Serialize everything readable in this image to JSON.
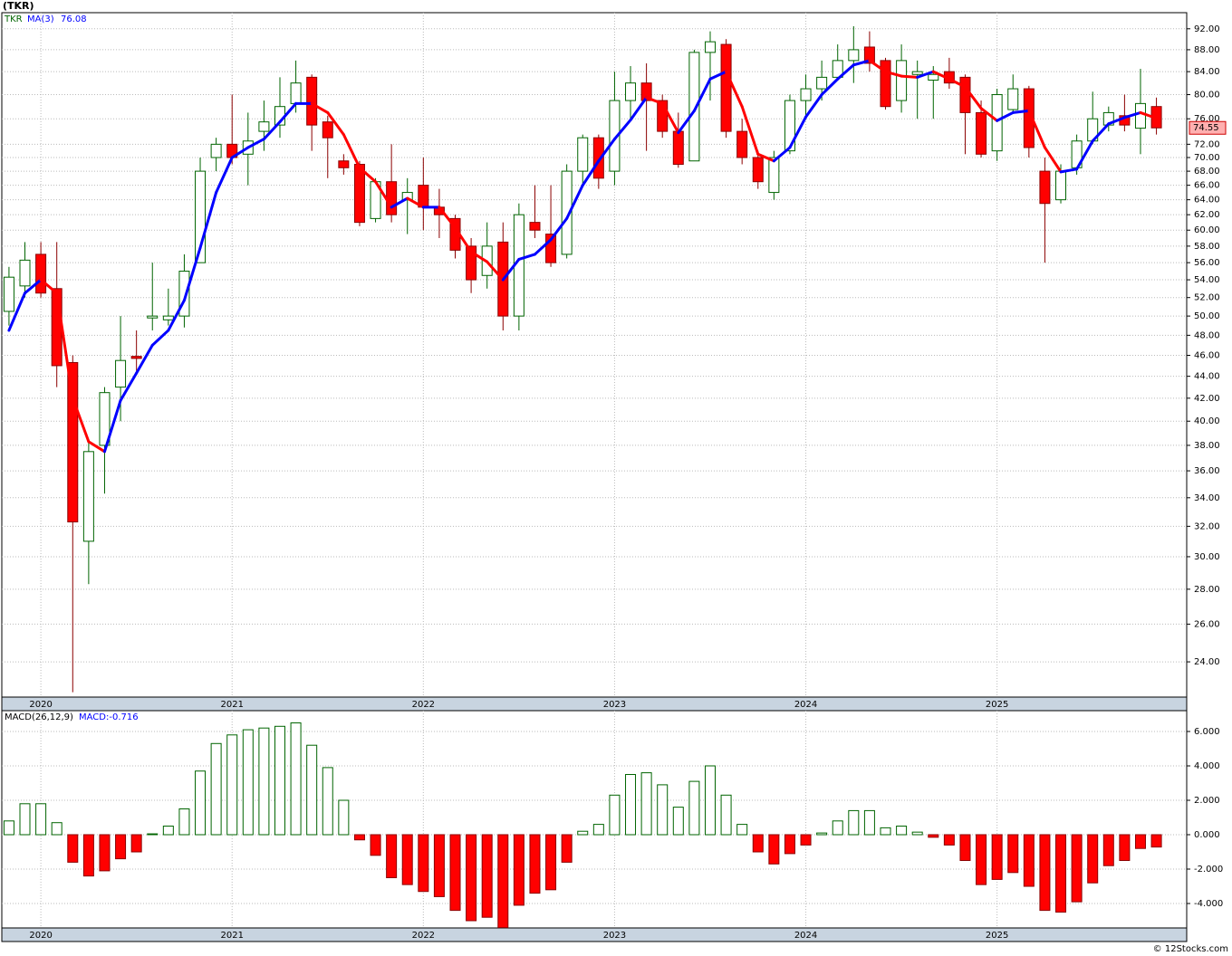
{
  "chart_data": [
    {
      "type": "candlestick",
      "title": "(TKR)",
      "symbol": "TKR",
      "yscale": "log",
      "grid": true,
      "up_color": "#006400",
      "down_color": "#ff0000",
      "ylim": [
        22.27,
        95.2
      ],
      "xlim": [
        -0.45,
        73.9
      ],
      "xticks": [
        {
          "value": 2,
          "label": "2020"
        },
        {
          "value": 14,
          "label": "2021"
        },
        {
          "value": 26,
          "label": "2022"
        },
        {
          "value": 38,
          "label": "2023"
        },
        {
          "value": 50,
          "label": "2024"
        },
        {
          "value": 62,
          "label": "2025"
        }
      ],
      "yticks": [
        {
          "value": 24,
          "label": "24.00"
        },
        {
          "value": 26,
          "label": "26.00"
        },
        {
          "value": 28,
          "label": "28.00"
        },
        {
          "value": 30,
          "label": "30.00"
        },
        {
          "value": 32,
          "label": "32.00"
        },
        {
          "value": 34,
          "label": "34.00"
        },
        {
          "value": 36,
          "label": "36.00"
        },
        {
          "value": 38,
          "label": "38.00"
        },
        {
          "value": 40,
          "label": "40.00"
        },
        {
          "value": 42,
          "label": "42.00"
        },
        {
          "value": 44,
          "label": "44.00"
        },
        {
          "value": 46,
          "label": "46.00"
        },
        {
          "value": 48,
          "label": "48.00"
        },
        {
          "value": 50,
          "label": "50.00"
        },
        {
          "value": 52,
          "label": "52.00"
        },
        {
          "value": 54,
          "label": "54.00"
        },
        {
          "value": 56,
          "label": "56.00"
        },
        {
          "value": 58,
          "label": "58.00"
        },
        {
          "value": 60,
          "label": "60.00"
        },
        {
          "value": 62,
          "label": "62.00"
        },
        {
          "value": 64,
          "label": "64.00"
        },
        {
          "value": 66,
          "label": "66.00"
        },
        {
          "value": 68,
          "label": "68.00"
        },
        {
          "value": 70,
          "label": "70.00"
        },
        {
          "value": 72,
          "label": "72.00"
        },
        {
          "value": 76,
          "label": "76.00"
        },
        {
          "value": 80,
          "label": "80.00"
        },
        {
          "value": 84,
          "label": "84.00"
        },
        {
          "value": 88,
          "label": "88.00"
        },
        {
          "value": 92,
          "label": "92.00"
        }
      ],
      "open": [
        50.5,
        53.3,
        57,
        53,
        45.3,
        31,
        38,
        43,
        45.9,
        49.8,
        49.6,
        50,
        56,
        70,
        72,
        70.5,
        74,
        75,
        78.5,
        83,
        75.5,
        69.5,
        69,
        61.5,
        66.5,
        64,
        66,
        63,
        61.5,
        58,
        54.5,
        58.5,
        50,
        61,
        59.5,
        57,
        68,
        73,
        68,
        79,
        82,
        79,
        74,
        69.5,
        87.5,
        89,
        74,
        70,
        65,
        71,
        79,
        81,
        83,
        86,
        88.5,
        86,
        79,
        83.5,
        82.5,
        84,
        83,
        77,
        71,
        77.5,
        81,
        68,
        64,
        68.5,
        72.5,
        75,
        76.5,
        74.5,
        78
      ],
      "high": [
        55.5,
        58.5,
        58.5,
        58.5,
        46,
        38.5,
        43,
        50,
        48.5,
        56,
        53,
        57,
        70,
        73,
        80,
        77,
        79,
        83,
        86,
        83.5,
        76.5,
        70.5,
        69.5,
        67,
        72,
        67,
        70,
        65.5,
        62,
        59,
        61,
        61,
        63.5,
        66,
        66,
        69,
        73.5,
        73.5,
        84,
        85,
        85.5,
        80,
        77,
        88,
        91.5,
        90,
        76,
        71,
        71,
        80,
        83.5,
        86,
        89,
        92.5,
        91.5,
        86.5,
        89,
        86,
        85,
        86.5,
        83.5,
        79,
        81,
        83.5,
        81.5,
        70,
        69,
        73.5,
        80.5,
        78,
        80,
        84.5,
        79.5
      ],
      "low": [
        49,
        52,
        52,
        43,
        22.5,
        28.3,
        34.3,
        40,
        44.5,
        48.5,
        49,
        48.8,
        56,
        68,
        69,
        66,
        71,
        73,
        77,
        71,
        67,
        67.5,
        60.5,
        61,
        61,
        59.5,
        60,
        59,
        56.5,
        52.5,
        53,
        48.5,
        48.5,
        59,
        55.5,
        56.5,
        66,
        65.5,
        66,
        76,
        71,
        73,
        68.5,
        69.5,
        79,
        73,
        69,
        65.5,
        64,
        70.5,
        76,
        79,
        83,
        82,
        84,
        77.5,
        77,
        76,
        76,
        81,
        70.5,
        70,
        69.5,
        77,
        70,
        56,
        63.5,
        67.5,
        72,
        74,
        74,
        70.5,
        73.5
      ],
      "close": [
        54.3,
        56.3,
        52.5,
        45,
        32.3,
        37.5,
        42.5,
        45.5,
        45.7,
        50,
        50,
        55,
        68,
        72,
        70,
        72.5,
        75.5,
        78,
        82,
        75,
        73,
        68.5,
        61,
        66.5,
        62,
        65,
        63,
        62,
        57.5,
        54,
        58,
        50,
        62,
        60,
        56,
        68,
        73,
        67,
        79,
        82,
        79,
        74,
        69,
        87.5,
        89.5,
        74,
        70,
        66.5,
        70,
        79,
        81,
        83,
        86,
        88,
        85.5,
        78,
        86,
        84,
        83.5,
        82,
        77,
        70.5,
        80,
        81,
        71.5,
        63.5,
        68,
        72.5,
        76,
        77,
        75,
        78.5,
        74.55
      ],
      "ma": {
        "name": "MA(3)",
        "up_color": "#0000ff",
        "down_color": "#ff0000",
        "values": [
          48.5,
          52.5,
          54,
          52.5,
          42,
          38.3,
          37.5,
          41.8,
          44.3,
          47,
          48.5,
          51.7,
          57.8,
          65,
          70,
          71.5,
          72.8,
          75.5,
          78.5,
          78.5,
          77,
          73.5,
          68.5,
          66.5,
          63,
          64.2,
          63,
          63,
          60.3,
          57.3,
          56.1,
          54,
          56.4,
          57,
          58.8,
          61.5,
          66,
          69.5,
          72.8,
          75.8,
          79.5,
          78.5,
          73.8,
          77.3,
          82.7,
          84,
          78,
          70.5,
          69.5,
          71.5,
          76.3,
          80,
          82.7,
          85.2,
          86,
          84,
          83.2,
          83,
          84,
          82.7,
          81.3,
          77.7,
          75.7,
          77,
          77.3,
          71.5,
          67.9,
          68.3,
          72.5,
          75.2,
          76.2,
          77,
          76.08
        ]
      }
    },
    {
      "type": "bar",
      "title": "MACD(26,12,9)",
      "legend": "MACD:-0.716",
      "grid": true,
      "pos_color": "#006400",
      "neg_color": "#ff0000",
      "ylim": [
        -5.42,
        7.21
      ],
      "xlim": [
        -0.45,
        73.9
      ],
      "xticks": [
        {
          "value": 2,
          "label": "2020"
        },
        {
          "value": 14,
          "label": "2021"
        },
        {
          "value": 26,
          "label": "2022"
        },
        {
          "value": 38,
          "label": "2023"
        },
        {
          "value": 50,
          "label": "2024"
        },
        {
          "value": 62,
          "label": "2025"
        }
      ],
      "yticks": [
        {
          "value": -4,
          "label": "-4.000"
        },
        {
          "value": -2,
          "label": "-2.000"
        },
        {
          "value": 0,
          "label": "0.000"
        },
        {
          "value": 2,
          "label": "2.000"
        },
        {
          "value": 4,
          "label": "4.000"
        },
        {
          "value": 6,
          "label": "6.000"
        }
      ],
      "values": [
        0.8,
        1.8,
        1.8,
        0.7,
        -1.6,
        -2.4,
        -2.1,
        -1.4,
        -1.0,
        0.05,
        0.5,
        1.5,
        3.7,
        5.3,
        5.8,
        6.1,
        6.2,
        6.3,
        6.5,
        5.2,
        3.9,
        2.0,
        -0.3,
        -1.2,
        -2.5,
        -2.9,
        -3.3,
        -3.6,
        -4.4,
        -5.0,
        -4.8,
        -5.4,
        -4.1,
        -3.4,
        -3.2,
        -1.6,
        0.2,
        0.6,
        2.3,
        3.5,
        3.6,
        2.9,
        1.6,
        3.1,
        4.0,
        2.3,
        0.6,
        -1.0,
        -1.7,
        -1.1,
        -0.6,
        0.1,
        0.8,
        1.4,
        1.4,
        0.4,
        0.5,
        0.15,
        -0.15,
        -0.6,
        -1.5,
        -2.9,
        -2.6,
        -2.2,
        -3.0,
        -4.4,
        -4.5,
        -3.9,
        -2.8,
        -1.8,
        -1.5,
        -0.8,
        -0.716
      ]
    }
  ],
  "source": "© 12Stocks.com"
}
